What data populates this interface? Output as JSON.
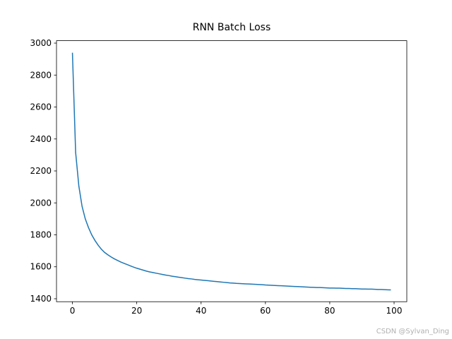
{
  "chart_data": {
    "type": "line",
    "title": "RNN Batch Loss",
    "x": [
      0,
      1,
      2,
      3,
      4,
      5,
      6,
      7,
      8,
      9,
      10,
      11,
      12,
      13,
      14,
      15,
      16,
      17,
      18,
      19,
      20,
      21,
      22,
      23,
      24,
      25,
      26,
      27,
      28,
      29,
      30,
      31,
      32,
      33,
      34,
      35,
      36,
      37,
      38,
      39,
      40,
      41,
      42,
      43,
      44,
      45,
      46,
      47,
      48,
      49,
      50,
      51,
      52,
      53,
      54,
      55,
      56,
      57,
      58,
      59,
      60,
      61,
      62,
      63,
      64,
      65,
      66,
      67,
      68,
      69,
      70,
      71,
      72,
      73,
      74,
      75,
      76,
      77,
      78,
      79,
      80,
      81,
      82,
      83,
      84,
      85,
      86,
      87,
      88,
      89,
      90,
      91,
      92,
      93,
      94,
      95,
      96,
      97,
      98,
      99
    ],
    "values": [
      2940,
      2315,
      2105,
      1978,
      1900,
      1845,
      1800,
      1765,
      1735,
      1710,
      1690,
      1675,
      1662,
      1650,
      1640,
      1630,
      1622,
      1614,
      1606,
      1598,
      1591,
      1585,
      1579,
      1573,
      1568,
      1564,
      1560,
      1556,
      1552,
      1548,
      1545,
      1541,
      1538,
      1535,
      1532,
      1529,
      1526,
      1524,
      1521,
      1519,
      1517,
      1515,
      1513,
      1511,
      1509,
      1507,
      1505,
      1503,
      1501,
      1499,
      1498,
      1496,
      1495,
      1494,
      1493,
      1492,
      1491,
      1490,
      1489,
      1488,
      1486,
      1485,
      1484,
      1483,
      1482,
      1481,
      1480,
      1479,
      1478,
      1477,
      1476,
      1475,
      1474,
      1473,
      1472,
      1471,
      1470,
      1470,
      1469,
      1468,
      1467,
      1467,
      1466,
      1466,
      1465,
      1464,
      1464,
      1463,
      1463,
      1462,
      1461,
      1461,
      1460,
      1460,
      1459,
      1458,
      1458,
      1457,
      1456,
      1455
    ],
    "color": "#1f77b4",
    "xlim": [
      -4.95,
      103.95
    ],
    "xticks": [
      0,
      20,
      40,
      60,
      80,
      100
    ],
    "ylim": [
      1381.4,
      3015.2
    ],
    "yticks": [
      1400,
      1600,
      1800,
      2000,
      2200,
      2400,
      2600,
      2800,
      3000
    ],
    "grid": false
  },
  "watermark": "CSDN @Sylvan_Ding"
}
